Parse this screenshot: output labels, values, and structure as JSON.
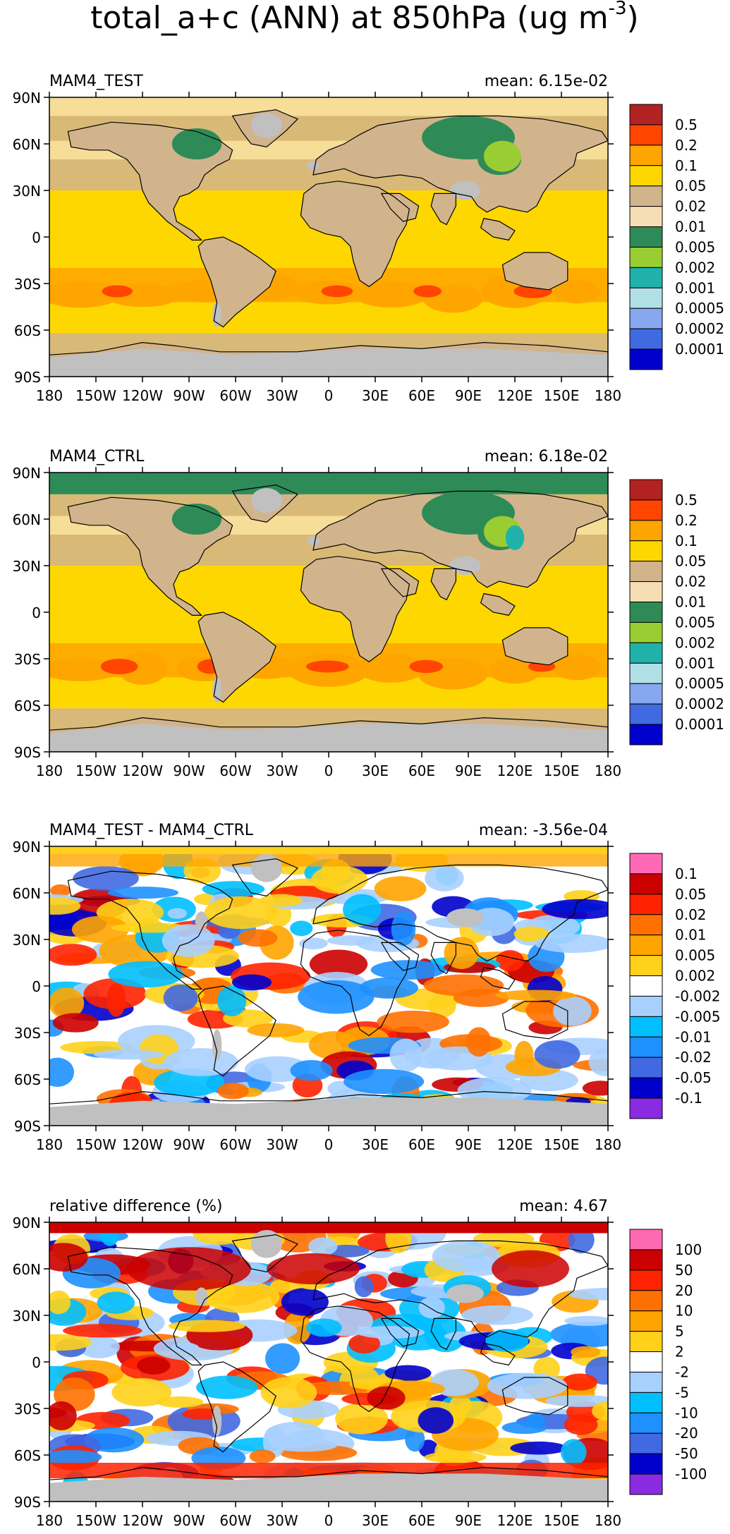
{
  "title": "total_a+c (ANN) at 850hPa (ug m",
  "title_sup": "-3",
  "title_end": ")",
  "x_ticks": [
    "180",
    "150W",
    "120W",
    "90W",
    "60W",
    "30W",
    "0",
    "30E",
    "60E",
    "90E",
    "120E",
    "150E",
    "180"
  ],
  "y_ticks": [
    "90N",
    "60N",
    "30N",
    "0",
    "30S",
    "60S",
    "90S"
  ],
  "land_color": "#c0c0c0",
  "panels": [
    {
      "name": "MAM4_TEST",
      "mean": "mean: 6.15e-02",
      "scheme": "conc",
      "levels": [
        "0.5",
        "0.2",
        "0.1",
        "0.05",
        "0.02",
        "0.01",
        "0.005",
        "0.002",
        "0.001",
        "0.0005",
        "0.0002",
        "0.0001"
      ],
      "colors": [
        "#b22222",
        "#ff4500",
        "#ffa500",
        "#ffd700",
        "#d2b48c",
        "#f5deb3",
        "#2e8b57",
        "#9acd32",
        "#20b2aa",
        "#b0e0e6",
        "#87a8f0",
        "#4169e1",
        "#0000cd"
      ]
    },
    {
      "name": "MAM4_CTRL",
      "mean": "mean: 6.18e-02",
      "scheme": "conc",
      "levels": [
        "0.5",
        "0.2",
        "0.1",
        "0.05",
        "0.02",
        "0.01",
        "0.005",
        "0.002",
        "0.001",
        "0.0005",
        "0.0002",
        "0.0001"
      ],
      "colors": [
        "#b22222",
        "#ff4500",
        "#ffa500",
        "#ffd700",
        "#d2b48c",
        "#f5deb3",
        "#2e8b57",
        "#9acd32",
        "#20b2aa",
        "#b0e0e6",
        "#87a8f0",
        "#4169e1",
        "#0000cd"
      ]
    },
    {
      "name": "MAM4_TEST - MAM4_CTRL",
      "mean": "mean: -3.56e-04",
      "scheme": "diff",
      "levels": [
        "0.1",
        "0.05",
        "0.02",
        "0.01",
        "0.005",
        "0.002",
        "-0.002",
        "-0.005",
        "-0.01",
        "-0.02",
        "-0.05",
        "-0.1"
      ],
      "colors": [
        "#ff69b4",
        "#cc0000",
        "#ff2200",
        "#ff7000",
        "#ffa500",
        "#ffd11a",
        "#ffffff",
        "#a8d0ff",
        "#00bfff",
        "#1e90ff",
        "#4169e1",
        "#0000cd",
        "#8a2be2"
      ]
    },
    {
      "name": "relative difference (%)",
      "mean": "mean:  4.67",
      "scheme": "rel",
      "levels": [
        "100",
        "50",
        "20",
        "10",
        "5",
        "2",
        "-2",
        "-5",
        "-10",
        "-20",
        "-50",
        "-100"
      ],
      "colors": [
        "#ff69b4",
        "#cc0000",
        "#ff2200",
        "#ff7000",
        "#ffa500",
        "#ffd11a",
        "#ffffff",
        "#a8d0ff",
        "#00bfff",
        "#1e90ff",
        "#4169e1",
        "#0000cd",
        "#8a2be2"
      ]
    }
  ],
  "chart_data": [
    {
      "type": "heatmap",
      "title": "MAM4_TEST",
      "subtitle": "mean: 6.15e-02",
      "xlim": [
        -180,
        180
      ],
      "ylim": [
        -90,
        90
      ],
      "contour_levels": [
        0.0001,
        0.0002,
        0.0005,
        0.001,
        0.002,
        0.005,
        0.01,
        0.02,
        0.05,
        0.1,
        0.2,
        0.5
      ]
    },
    {
      "type": "heatmap",
      "title": "MAM4_CTRL",
      "subtitle": "mean: 6.18e-02",
      "xlim": [
        -180,
        180
      ],
      "ylim": [
        -90,
        90
      ],
      "contour_levels": [
        0.0001,
        0.0002,
        0.0005,
        0.001,
        0.002,
        0.005,
        0.01,
        0.02,
        0.05,
        0.1,
        0.2,
        0.5
      ]
    },
    {
      "type": "heatmap",
      "title": "MAM4_TEST - MAM4_CTRL",
      "subtitle": "mean: -3.56e-04",
      "xlim": [
        -180,
        180
      ],
      "ylim": [
        -90,
        90
      ],
      "contour_levels": [
        -0.1,
        -0.05,
        -0.02,
        -0.01,
        -0.005,
        -0.002,
        0.002,
        0.005,
        0.01,
        0.02,
        0.05,
        0.1
      ]
    },
    {
      "type": "heatmap",
      "title": "relative difference (%)",
      "subtitle": "mean:  4.67",
      "xlim": [
        -180,
        180
      ],
      "ylim": [
        -90,
        90
      ],
      "contour_levels": [
        -100,
        -50,
        -20,
        -10,
        -5,
        -2,
        2,
        5,
        10,
        20,
        50,
        100
      ]
    }
  ]
}
